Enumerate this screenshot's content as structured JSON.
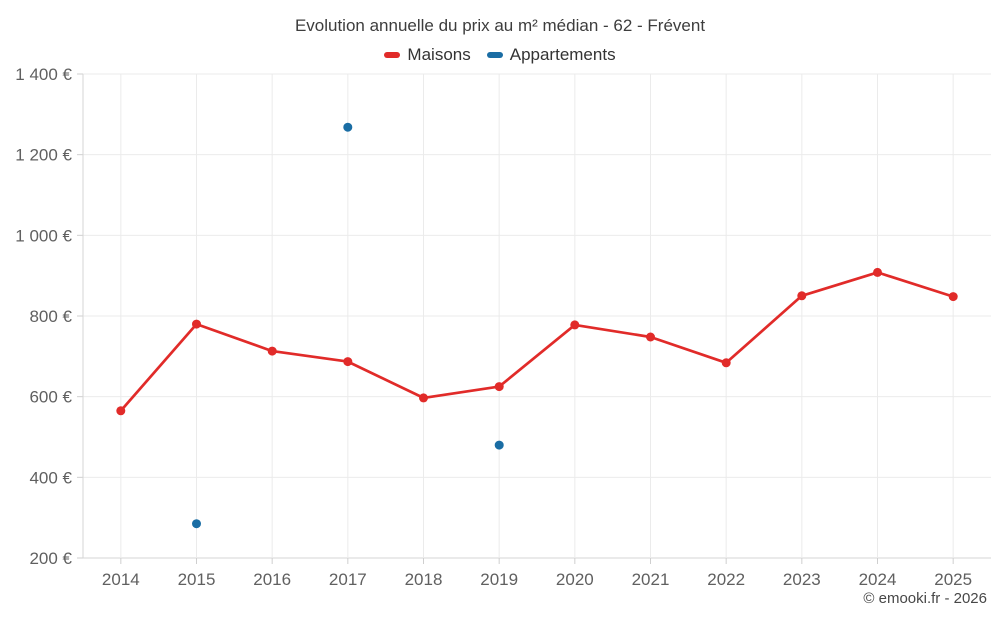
{
  "chart": {
    "title": "Evolution annuelle du prix au m² médian - 62 - Frévent",
    "attribution": "© emooki.fr - 2026"
  },
  "legend": {
    "items": [
      {
        "label": "Maisons",
        "color": "#e12b29"
      },
      {
        "label": "Appartements",
        "color": "#1a6da4"
      }
    ]
  },
  "chart_data": {
    "type": "line",
    "title": "Evolution annuelle du prix au m² médian - 62 - Frévent",
    "xlabel": "",
    "ylabel": "",
    "categories": [
      "2014",
      "2015",
      "2016",
      "2017",
      "2018",
      "2019",
      "2020",
      "2021",
      "2022",
      "2023",
      "2024",
      "2025"
    ],
    "series": [
      {
        "name": "Maisons",
        "color": "#e12b29",
        "values": [
          565,
          780,
          713,
          687,
          597,
          625,
          778,
          748,
          684,
          850,
          908,
          848
        ]
      },
      {
        "name": "Appartements",
        "color": "#1a6da4",
        "values": [
          null,
          285,
          null,
          1268,
          null,
          480,
          null,
          null,
          null,
          null,
          null,
          null
        ]
      }
    ],
    "ylim": [
      200,
      1400
    ],
    "yticks": [
      200,
      400,
      600,
      800,
      1000,
      1200,
      1400
    ],
    "yticklabels": [
      "200 €",
      "400 €",
      "600 €",
      "800 €",
      "1 000 €",
      "1 200 €",
      "1 400 €"
    ],
    "grid": true,
    "legend_position": "top",
    "currency_suffix": " €"
  }
}
